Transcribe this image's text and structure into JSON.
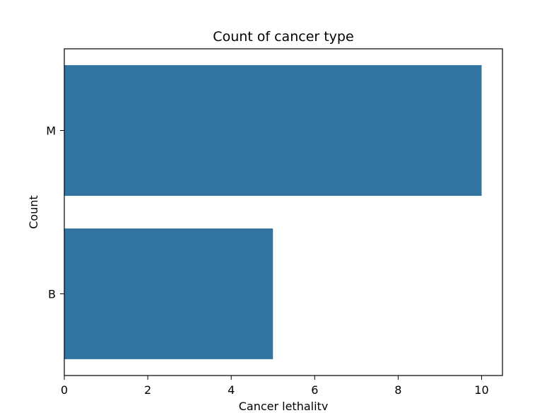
{
  "chart_data": {
    "type": "bar",
    "orientation": "horizontal",
    "title": "Count of cancer type",
    "xlabel": "Cancer lethality",
    "ylabel": "Count",
    "categories": [
      "M",
      "B"
    ],
    "values": [
      10,
      5
    ],
    "xlim": [
      0,
      10.5
    ],
    "xticks": [
      0,
      2,
      4,
      6,
      8,
      10
    ],
    "grid": false,
    "bar_color": "#3274a1"
  }
}
